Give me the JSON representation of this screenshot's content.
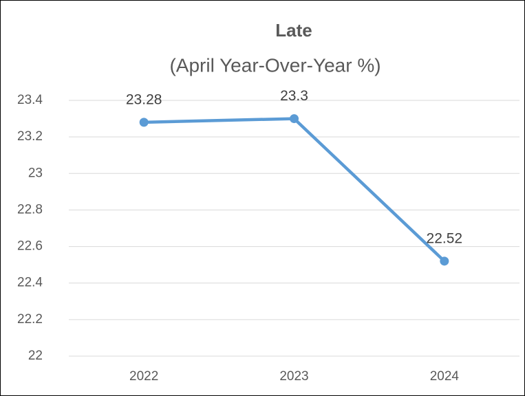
{
  "chart_data": {
    "type": "line",
    "title": "Late",
    "subtitle": "(April Year-Over-Year %)",
    "categories": [
      "2022",
      "2023",
      "2024"
    ],
    "values": [
      23.28,
      23.3,
      22.52
    ],
    "color": "#5b9bd5",
    "ylim": [
      22,
      23.4
    ],
    "yticks": [
      22,
      22.2,
      22.4,
      22.6,
      22.8,
      23,
      23.2,
      23.4
    ],
    "grid": true
  }
}
